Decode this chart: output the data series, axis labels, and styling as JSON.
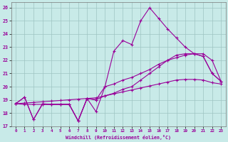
{
  "xlabel": "Windchill (Refroidissement éolien,°C)",
  "bg_color": "#c8eae8",
  "grid_color": "#9ec4c2",
  "line_color": "#990099",
  "xlim": [
    -0.5,
    23.5
  ],
  "ylim": [
    17,
    26.4
  ],
  "yticks": [
    17,
    18,
    19,
    20,
    21,
    22,
    23,
    24,
    25,
    26
  ],
  "xticks": [
    0,
    1,
    2,
    3,
    4,
    5,
    6,
    7,
    8,
    9,
    10,
    11,
    12,
    13,
    14,
    15,
    16,
    17,
    18,
    19,
    20,
    21,
    22,
    23
  ],
  "lines": [
    [
      18.7,
      19.2,
      17.5,
      18.7,
      18.65,
      18.65,
      18.65,
      17.4,
      19.1,
      18.1,
      20.0,
      22.7,
      23.5,
      23.2,
      25.0,
      26.0,
      25.2,
      24.4,
      23.7,
      23.0,
      22.5,
      22.3,
      21.0,
      20.4
    ],
    [
      18.7,
      18.65,
      18.65,
      18.65,
      18.65,
      18.65,
      18.65,
      17.4,
      19.1,
      19.0,
      19.3,
      19.5,
      19.8,
      20.0,
      20.5,
      21.0,
      21.5,
      22.0,
      22.4,
      22.5,
      22.5,
      22.3,
      21.0,
      20.4
    ],
    [
      18.7,
      18.75,
      18.8,
      18.85,
      18.9,
      18.95,
      19.0,
      19.05,
      19.1,
      19.15,
      19.3,
      19.45,
      19.6,
      19.75,
      19.9,
      20.05,
      20.2,
      20.35,
      20.5,
      20.55,
      20.55,
      20.5,
      20.3,
      20.2
    ],
    [
      18.7,
      19.2,
      17.5,
      18.65,
      18.65,
      18.65,
      18.65,
      17.4,
      19.1,
      19.0,
      20.0,
      20.2,
      20.5,
      20.7,
      21.0,
      21.3,
      21.7,
      22.0,
      22.2,
      22.4,
      22.5,
      22.5,
      22.0,
      20.4
    ]
  ]
}
